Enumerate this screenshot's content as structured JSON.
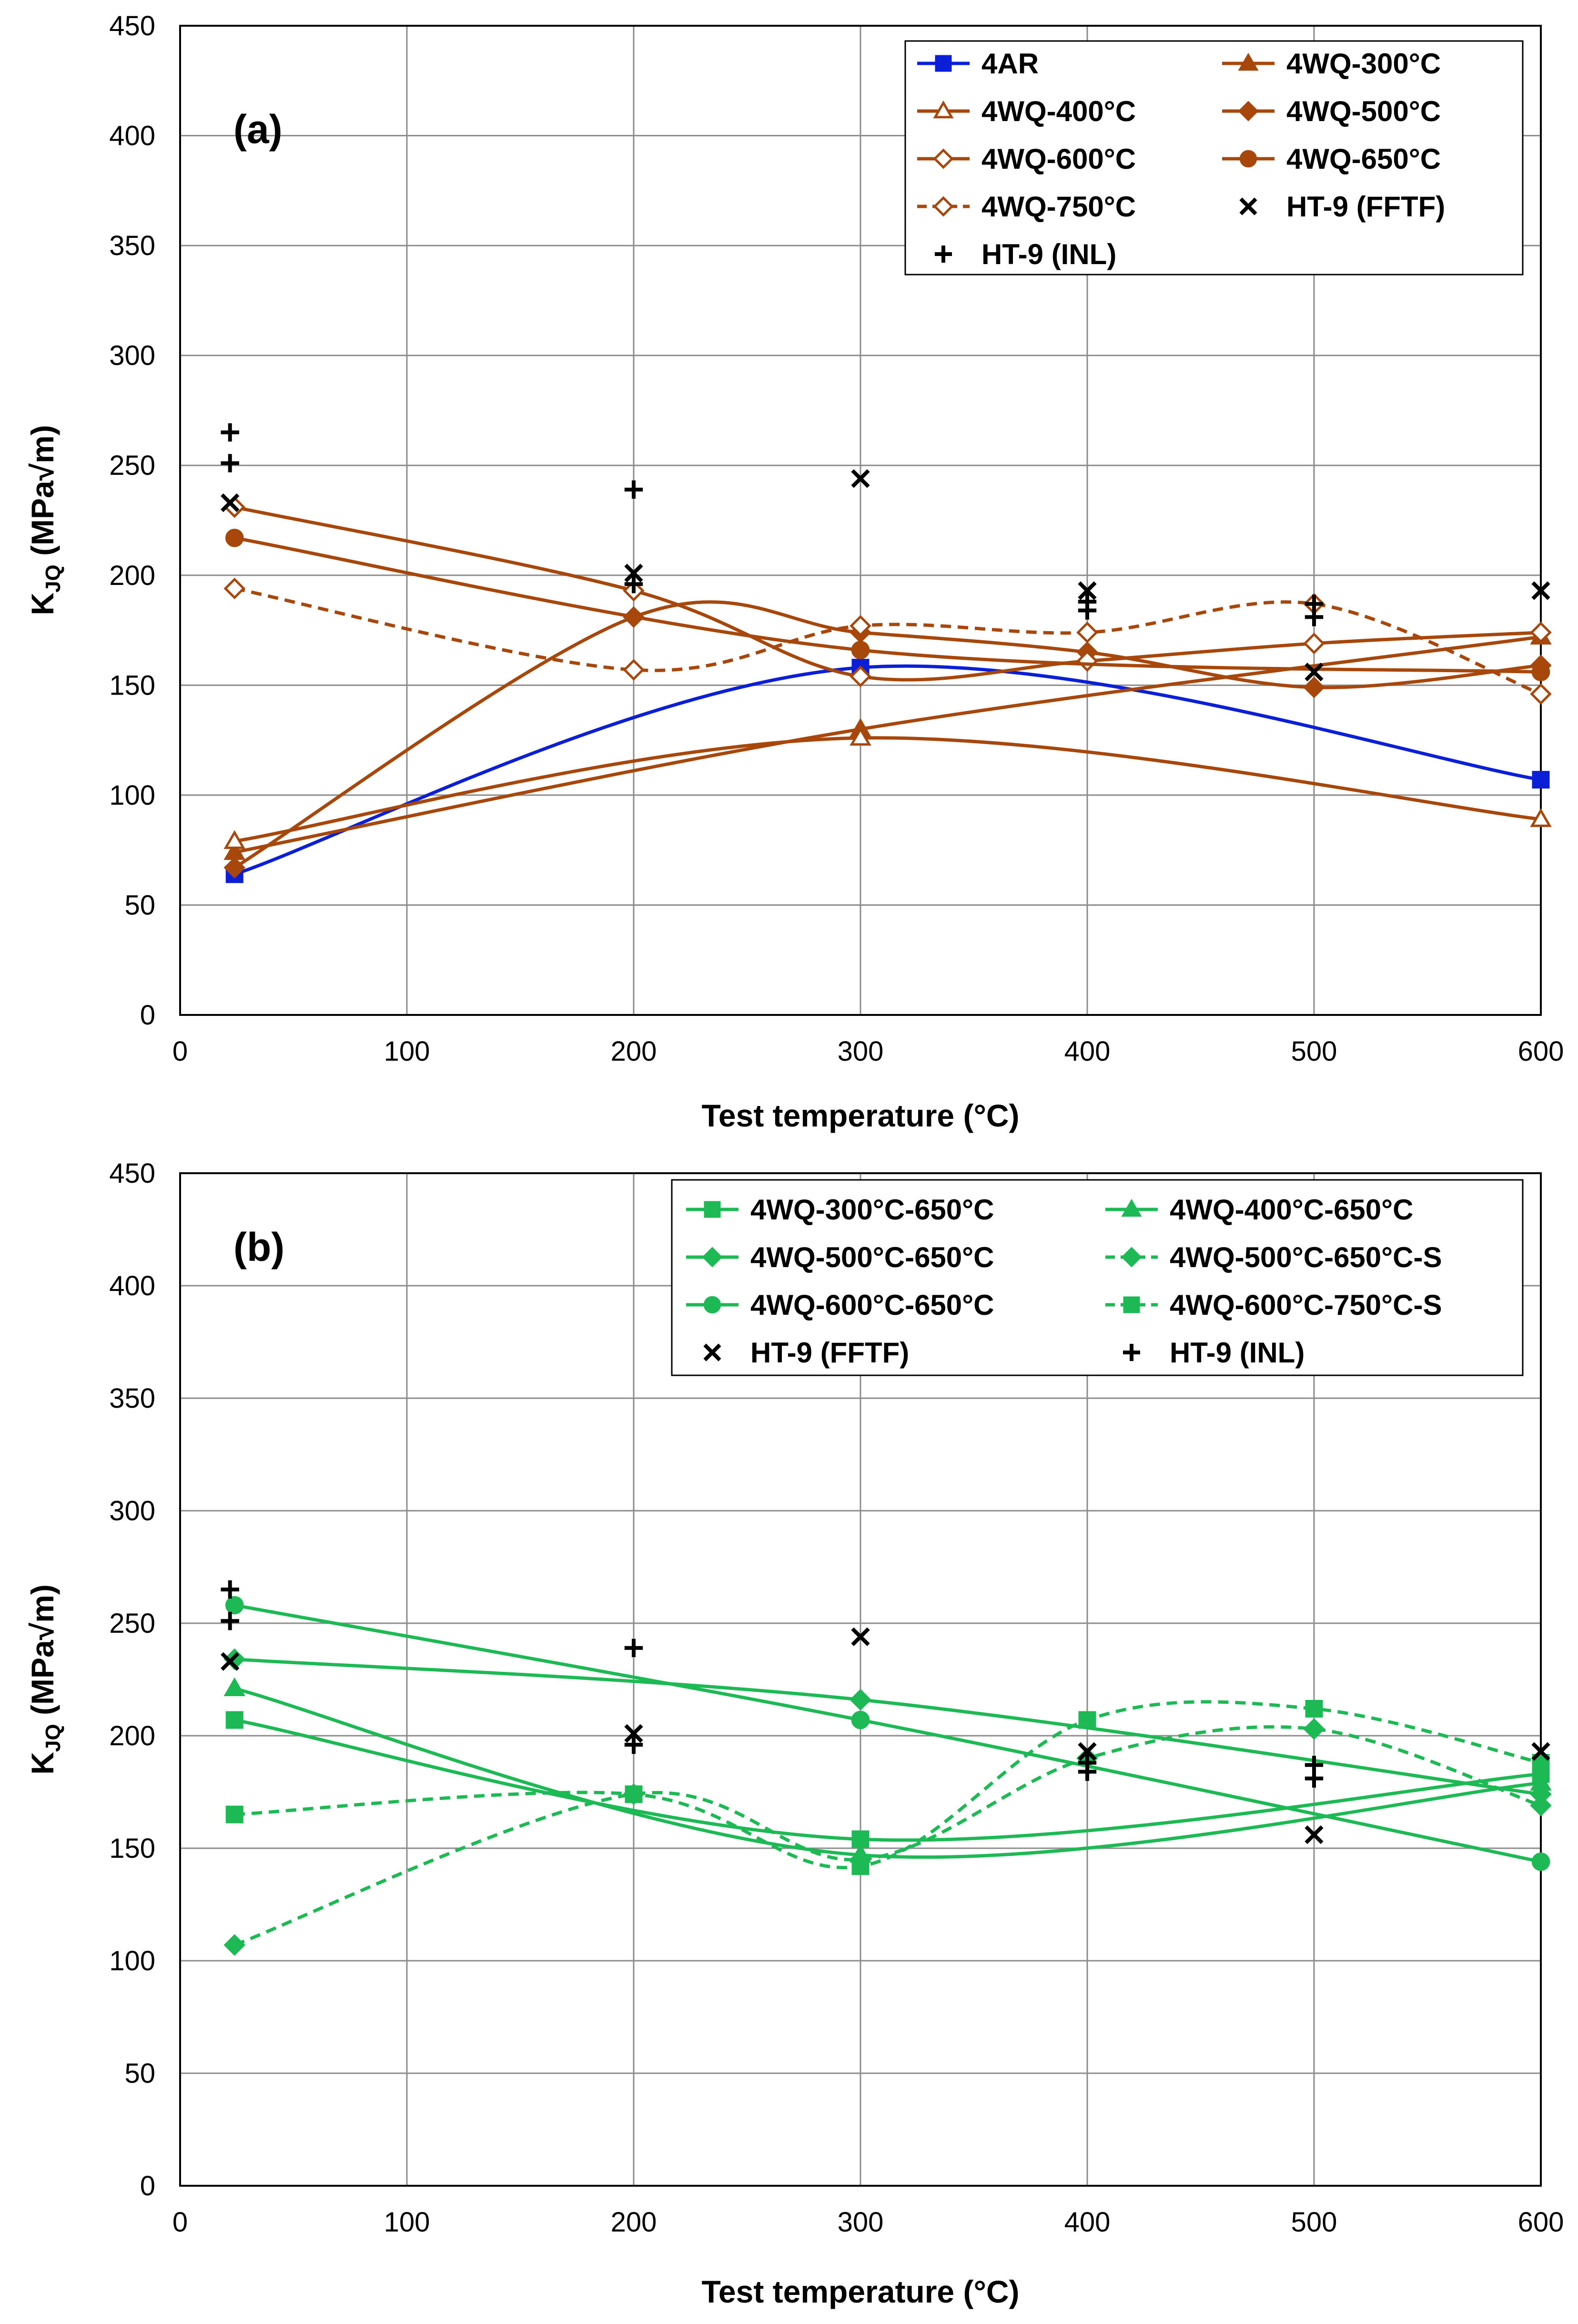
{
  "chart_data": [
    {
      "type": "line",
      "panel_label": "(a)",
      "xlabel": "Test temperature (°C)",
      "ylabel": "K",
      "ylabel_sub": "JQ",
      "ylabel_unit": " (MPa√m)",
      "xlim": [
        0,
        600
      ],
      "ylim": [
        0,
        450
      ],
      "xticks": [
        "0",
        "100",
        "200",
        "300",
        "400",
        "500",
        "600"
      ],
      "yticks": [
        "0",
        "50",
        "100",
        "150",
        "200",
        "250",
        "300",
        "350",
        "400",
        "450"
      ],
      "grid": true,
      "legend_position": "top-right",
      "series": [
        {
          "name": "4AR",
          "color": "#0a1fd6",
          "marker": "square",
          "fill": true,
          "dashed": false,
          "x": [
            24,
            300,
            600
          ],
          "y": [
            64,
            158,
            107
          ]
        },
        {
          "name": "4WQ-300°C",
          "color": "#a8470b",
          "marker": "triangle",
          "fill": true,
          "dashed": false,
          "x": [
            24,
            300,
            600
          ],
          "y": [
            74,
            130,
            172
          ]
        },
        {
          "name": "4WQ-400°C",
          "color": "#a8470b",
          "marker": "triangle",
          "fill": false,
          "dashed": false,
          "x": [
            24,
            300,
            600
          ],
          "y": [
            79,
            126,
            89
          ]
        },
        {
          "name": "4WQ-500°C",
          "color": "#a8470b",
          "marker": "diamond",
          "fill": true,
          "dashed": false,
          "x": [
            24,
            200,
            300,
            400,
            500,
            600
          ],
          "y": [
            67,
            181,
            174,
            165,
            149,
            159
          ]
        },
        {
          "name": "4WQ-600°C",
          "color": "#a8470b",
          "marker": "diamond",
          "fill": false,
          "dashed": false,
          "x": [
            24,
            200,
            300,
            400,
            500,
            600
          ],
          "y": [
            231,
            193,
            154,
            161,
            169,
            174
          ]
        },
        {
          "name": "4WQ-650°C",
          "color": "#a8470b",
          "marker": "circle",
          "fill": true,
          "dashed": false,
          "x": [
            24,
            300,
            600
          ],
          "y": [
            217,
            166,
            156
          ]
        },
        {
          "name": "4WQ-750°C",
          "color": "#a8470b",
          "marker": "diamond",
          "fill": false,
          "dashed": true,
          "x": [
            24,
            200,
            300,
            400,
            500,
            600
          ],
          "y": [
            194,
            157,
            177,
            174,
            187,
            146
          ]
        },
        {
          "name": "HT-9 (FFTF)",
          "color": "#000000",
          "marker": "x",
          "fill": false,
          "dashed": false,
          "scatter": true,
          "x": [
            22,
            200,
            300,
            400,
            500,
            600
          ],
          "y": [
            233,
            201,
            244,
            193,
            156,
            193
          ]
        },
        {
          "name": "HT-9 (INL)",
          "color": "#000000",
          "marker": "plus",
          "fill": false,
          "dashed": false,
          "scatter": true,
          "x": [
            22,
            22,
            200,
            200,
            400,
            400,
            500,
            500
          ],
          "y": [
            265,
            251,
            239,
            196,
            188,
            184,
            187,
            181
          ]
        }
      ]
    },
    {
      "type": "line",
      "panel_label": "(b)",
      "xlabel": "Test temperature (°C)",
      "ylabel": "K",
      "ylabel_sub": "JQ",
      "ylabel_unit": " (MPa√m)",
      "xlim": [
        0,
        600
      ],
      "ylim": [
        0,
        450
      ],
      "xticks": [
        "0",
        "100",
        "200",
        "300",
        "400",
        "500",
        "600"
      ],
      "yticks": [
        "0",
        "50",
        "100",
        "150",
        "200",
        "250",
        "300",
        "350",
        "400",
        "450"
      ],
      "grid": true,
      "legend_position": "top-right",
      "series": [
        {
          "name": "4WQ-300°C-650°C",
          "color": "#1db954",
          "marker": "square",
          "fill": true,
          "dashed": false,
          "x": [
            24,
            300,
            600
          ],
          "y": [
            207,
            154,
            183
          ]
        },
        {
          "name": "4WQ-400°C-650°C",
          "color": "#1db954",
          "marker": "triangle",
          "fill": true,
          "dashed": false,
          "x": [
            24,
            300,
            600
          ],
          "y": [
            221,
            147,
            179
          ]
        },
        {
          "name": "4WQ-500°C-650°C",
          "color": "#1db954",
          "marker": "diamond",
          "fill": true,
          "dashed": false,
          "x": [
            24,
            300,
            600
          ],
          "y": [
            234,
            216,
            174
          ]
        },
        {
          "name": "4WQ-500°C-650°C-S",
          "color": "#1db954",
          "marker": "diamond",
          "fill": true,
          "dashed": true,
          "x": [
            24,
            200,
            300,
            400,
            500,
            600
          ],
          "y": [
            107,
            174,
            145,
            190,
            203,
            169
          ]
        },
        {
          "name": "4WQ-600°C-650°C",
          "color": "#1db954",
          "marker": "circle",
          "fill": true,
          "dashed": false,
          "x": [
            24,
            300,
            600
          ],
          "y": [
            258,
            207,
            144
          ]
        },
        {
          "name": "4WQ-600°C-750°C-S",
          "color": "#1db954",
          "marker": "square",
          "fill": true,
          "dashed": true,
          "x": [
            24,
            200,
            300,
            400,
            500,
            600
          ],
          "y": [
            165,
            174,
            142,
            207,
            212,
            188
          ]
        },
        {
          "name": "HT-9 (FFTF)",
          "color": "#000000",
          "marker": "x",
          "fill": false,
          "dashed": false,
          "scatter": true,
          "x": [
            22,
            200,
            300,
            400,
            500,
            600
          ],
          "y": [
            233,
            201,
            244,
            193,
            156,
            193
          ]
        },
        {
          "name": "HT-9 (INL)",
          "color": "#000000",
          "marker": "plus",
          "fill": false,
          "dashed": false,
          "scatter": true,
          "x": [
            22,
            22,
            200,
            200,
            400,
            400,
            500,
            500
          ],
          "y": [
            265,
            251,
            239,
            196,
            188,
            184,
            187,
            181
          ]
        }
      ]
    }
  ]
}
